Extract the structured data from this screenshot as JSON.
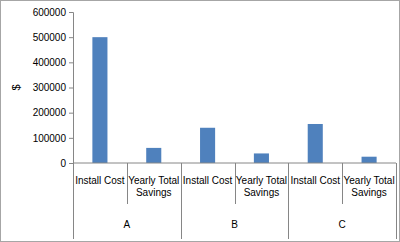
{
  "chart_data": {
    "type": "bar",
    "categories": [
      "Install Cost",
      "Yearly Total Savings",
      "Install Cost",
      "Yearly Total Savings",
      "Install Cost",
      "Yearly Total Savings"
    ],
    "groups": [
      "A",
      "B",
      "C"
    ],
    "values": [
      500000,
      60000,
      140000,
      38000,
      155000,
      25000
    ],
    "color": "#4f81bd",
    "y_label": "$",
    "ylim": [
      0,
      600000
    ],
    "yticks": [
      0,
      100000,
      200000,
      300000,
      400000,
      500000,
      600000
    ],
    "grid": false
  }
}
